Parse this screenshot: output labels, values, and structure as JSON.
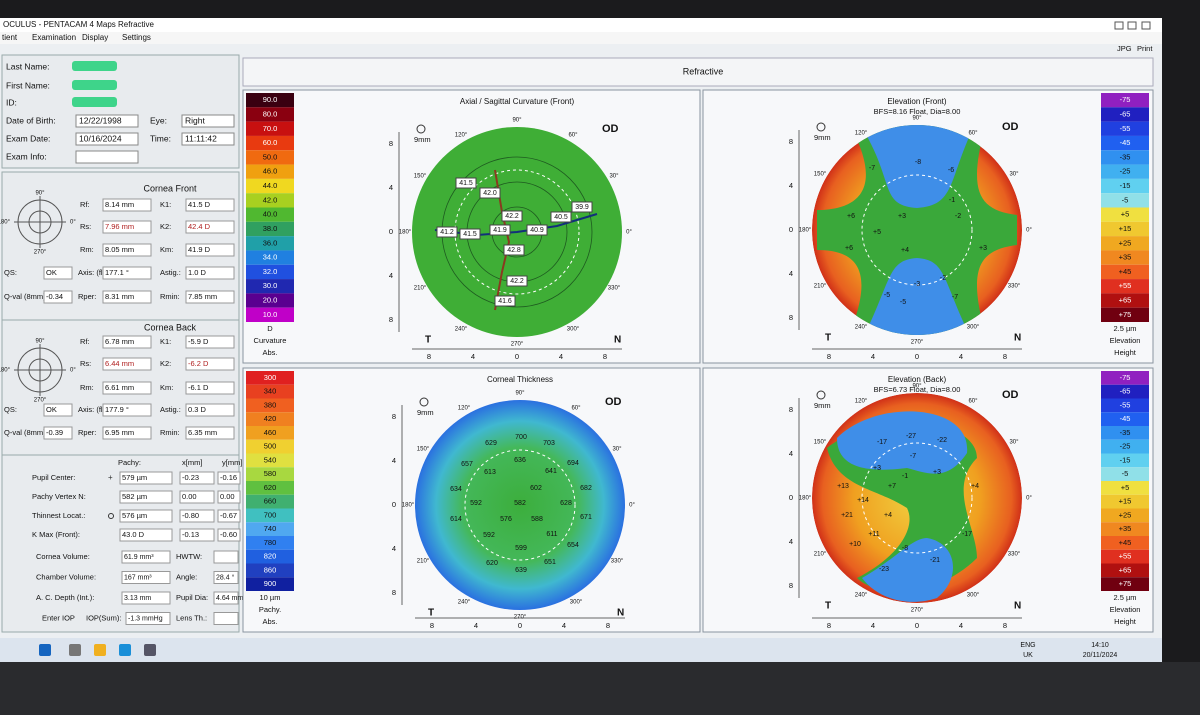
{
  "window": {
    "title": "OCULUS - PENTACAM  4 Maps Refractive",
    "menu": [
      "tient",
      "Examination",
      "Display",
      "Settings"
    ],
    "buttons": [
      "JPG",
      "Print"
    ]
  },
  "patient": {
    "rows": [
      [
        {
          "label": "Last Name:"
        }
      ],
      [
        {
          "label": "First Name:"
        }
      ],
      [
        {
          "label": "ID:"
        }
      ],
      [
        {
          "label": "Date of Birth:",
          "value": "12/22/1998"
        },
        {
          "label": "Eye:",
          "value": "Right"
        }
      ],
      [
        {
          "label": "Exam Date:",
          "value": "10/16/2024"
        },
        {
          "label": "Time:",
          "value": "11:11:42"
        }
      ],
      [
        {
          "label": "Exam Info:"
        }
      ]
    ]
  },
  "cornea_front": {
    "title": "Cornea Front",
    "diagram": [
      "90°",
      "270°",
      "0°",
      "180°"
    ],
    "rows": [
      [
        {
          "label": "Rf:",
          "value": "8.14 mm"
        },
        {
          "label": "K1:",
          "value": "41.5 D"
        }
      ],
      [
        {
          "label": "Rs:",
          "value": "7.96 mm"
        },
        {
          "label": "K2:",
          "value": "42.4 D"
        }
      ],
      [
        {
          "label": "Rm:",
          "value": "8.05 mm"
        },
        {
          "label": "Km:",
          "value": "41.9 D"
        }
      ],
      [
        {
          "label": "QS:",
          "value": "OK"
        },
        {
          "label": "Axis: (flat)",
          "value": "177.1 °"
        },
        {
          "label": "Astig.:",
          "value": "1.0 D"
        }
      ],
      [
        {
          "label": "Q-val (8mm):",
          "value": "-0.34"
        },
        {
          "label": "Rper:",
          "value": "8.31 mm"
        },
        {
          "label": "Rmin:",
          "value": "7.85 mm"
        }
      ]
    ]
  },
  "cornea_back": {
    "title": "Cornea Back",
    "diagram": [
      "90°",
      "270°",
      "0°",
      "180°"
    ],
    "rows": [
      [
        {
          "label": "Rf:",
          "value": "6.78 mm"
        },
        {
          "label": "K1:",
          "value": "-5.9 D"
        }
      ],
      [
        {
          "label": "Rs:",
          "value": "6.44 mm"
        },
        {
          "label": "K2:",
          "value": "-6.2 D"
        }
      ],
      [
        {
          "label": "Rm:",
          "value": "6.61 mm"
        },
        {
          "label": "Km:",
          "value": "-6.1 D"
        }
      ],
      [
        {
          "label": "QS:",
          "value": "OK"
        },
        {
          "label": "Axis: (flat)",
          "value": "177.9 °"
        },
        {
          "label": "Astig.:",
          "value": "0.3 D"
        }
      ],
      [
        {
          "label": "Q-val (8mm):",
          "value": "-0.39"
        },
        {
          "label": "Rper:",
          "value": "6.95 mm"
        },
        {
          "label": "Rmin:",
          "value": "6.35 mm"
        }
      ]
    ]
  },
  "pachy": {
    "header": [
      "Pachy:",
      "x[mm]",
      "y[mm]"
    ],
    "rows": [
      {
        "label": "Pupil Center:",
        "values": [
          "579 µm",
          "-0.23",
          "-0.16"
        ]
      },
      {
        "label": "Pachy Vertex N:",
        "values": [
          "582 µm",
          "0.00",
          "0.00"
        ]
      },
      {
        "label": "Thinnest Locat.:",
        "values": [
          "576 µm",
          "-0.80",
          "-0.67"
        ]
      },
      {
        "label": "K Max (Front):",
        "values": [
          "43.0 D",
          "-0.13",
          "-0.60"
        ]
      }
    ]
  },
  "volumes": {
    "rows": [
      [
        {
          "label": "Cornea Volume:",
          "value": "61.9 mm³"
        },
        {
          "label": "HWTW:"
        }
      ],
      [
        {
          "label": "Chamber Volume:",
          "value": "167 mm³"
        },
        {
          "label": "Angle:",
          "value": "28.4 °"
        }
      ],
      [
        {
          "label": "A. C. Depth (Int.):",
          "value": "3.13 mm"
        },
        {
          "label": "Pupil Dia:",
          "value": "4.64 mm"
        }
      ],
      [
        {
          "label": "Enter IOP"
        },
        {
          "label": "IOP(Sum):",
          "value": "-1.3 mmHg"
        },
        {
          "label": "Lens Th.:"
        }
      ]
    ]
  },
  "header": "Refractive",
  "axis": {
    "v": [
      "8",
      "4",
      "0",
      "4",
      "8"
    ],
    "h": [
      "8",
      "4",
      "0",
      "4",
      "8"
    ],
    "angles": [
      "90°",
      "60°",
      "30°",
      "0°",
      "330°",
      "300°",
      "270°",
      "240°",
      "210°",
      "180°",
      "150°",
      "120°"
    ],
    "left": "T",
    "right": "N",
    "eye": "OD",
    "zoom": "9mm"
  },
  "maps": [
    {
      "kind": "axial",
      "title": "Axial / Sagittal Curvature (Front)",
      "scale": {
        "values": [
          "90.0",
          "80.0",
          "70.0",
          "60.0",
          "50.0",
          "46.0",
          "44.0",
          "42.0",
          "40.0",
          "38.0",
          "36.0",
          "34.0",
          "32.0",
          "30.0",
          "20.0",
          "10.0"
        ],
        "colors": [
          "#3a0010",
          "#8a0010",
          "#c81010",
          "#e83a10",
          "#f06a10",
          "#f0a010",
          "#f0d820",
          "#a8d020",
          "#50b830",
          "#30a060",
          "#20a0a8",
          "#2080e0",
          "#2050e0",
          "#2028b0",
          "#5a0090",
          "#c000c8"
        ],
        "footer": [
          "D",
          "Curvature",
          "Abs."
        ]
      },
      "labels": [
        "41.5",
        "42.0",
        "41.2",
        "41.5",
        "41.9",
        "42.2",
        "42.8",
        "40.9",
        "40.5",
        "39.9",
        "42.2",
        "41.6"
      ]
    },
    {
      "kind": "elev-front",
      "title": "Elevation (Front)",
      "subtitle": "BFS=8.16 Float, Dia=8.00",
      "scale": {
        "values": [
          "-75",
          "-65",
          "-55",
          "-45",
          "-35",
          "-25",
          "-15",
          "-5",
          "+5",
          "+15",
          "+25",
          "+35",
          "+45",
          "+55",
          "+65",
          "+75"
        ],
        "colors": [
          "#9020c0",
          "#2020c0",
          "#2040e0",
          "#2060f0",
          "#3090f0",
          "#40b0f0",
          "#60d0f0",
          "#90e0e8",
          "#f0e040",
          "#f0c830",
          "#f0a820",
          "#f08820",
          "#f06020",
          "#e03020",
          "#b01010",
          "#700010"
        ],
        "footer": [
          "2.5 µm",
          "Elevation",
          "Height"
        ]
      },
      "labels": [
        "-7",
        "-8",
        "-6",
        "+6",
        "+3",
        "-1",
        "-2",
        "+5",
        "+4",
        "+6",
        "+3",
        "-5",
        "-3",
        "-2",
        "-7",
        "-5"
      ]
    },
    {
      "kind": "thickness",
      "title": "Corneal Thickness",
      "scale": {
        "values": [
          "300",
          "340",
          "380",
          "420",
          "460",
          "500",
          "540",
          "580",
          "620",
          "660",
          "700",
          "740",
          "780",
          "820",
          "860",
          "900"
        ],
        "colors": [
          "#e02020",
          "#e84020",
          "#f06020",
          "#f08020",
          "#f0a020",
          "#f0d030",
          "#e0e040",
          "#a8d840",
          "#60c040",
          "#40b070",
          "#40c0c0",
          "#50a8f0",
          "#3080f0",
          "#2060e0",
          "#2040c0",
          "#1020a0"
        ],
        "footer": [
          "10 µm",
          "Pachy.",
          "Abs."
        ]
      },
      "labels": [
        "629",
        "700",
        "703",
        "657",
        "613",
        "636",
        "641",
        "694",
        "634",
        "592",
        "582",
        "602",
        "628",
        "682",
        "614",
        "576",
        "588",
        "671",
        "592",
        "611",
        "654",
        "599",
        "620",
        "639",
        "651"
      ]
    },
    {
      "kind": "elev-back",
      "title": "Elevation (Back)",
      "subtitle": "BFS=6.73 Float, Dia=8.00",
      "scale": {
        "values": [
          "-75",
          "-65",
          "-55",
          "-45",
          "-35",
          "-25",
          "-15",
          "-5",
          "+5",
          "+15",
          "+25",
          "+35",
          "+45",
          "+55",
          "+65",
          "+75"
        ],
        "colors": [
          "#9020c0",
          "#2020c0",
          "#2040e0",
          "#2060f0",
          "#3090f0",
          "#40b0f0",
          "#60d0f0",
          "#90e0e8",
          "#f0e040",
          "#f0c830",
          "#f0a820",
          "#f08820",
          "#f06020",
          "#e03020",
          "#b01010",
          "#700010"
        ],
        "footer": [
          "2.5 µm",
          "Elevation",
          "Height"
        ]
      },
      "labels": [
        "-17",
        "-27",
        "-22",
        "-7",
        "+3",
        "-1",
        "+3",
        "+13",
        "+7",
        "+4",
        "+14",
        "+21",
        "+4",
        "+11",
        "+10",
        "-8",
        "-23",
        "-21",
        "-17"
      ]
    }
  ],
  "taskbar": {
    "lang": [
      "ENG",
      "UK"
    ],
    "time": "14:10",
    "date": "20/11/2024"
  }
}
